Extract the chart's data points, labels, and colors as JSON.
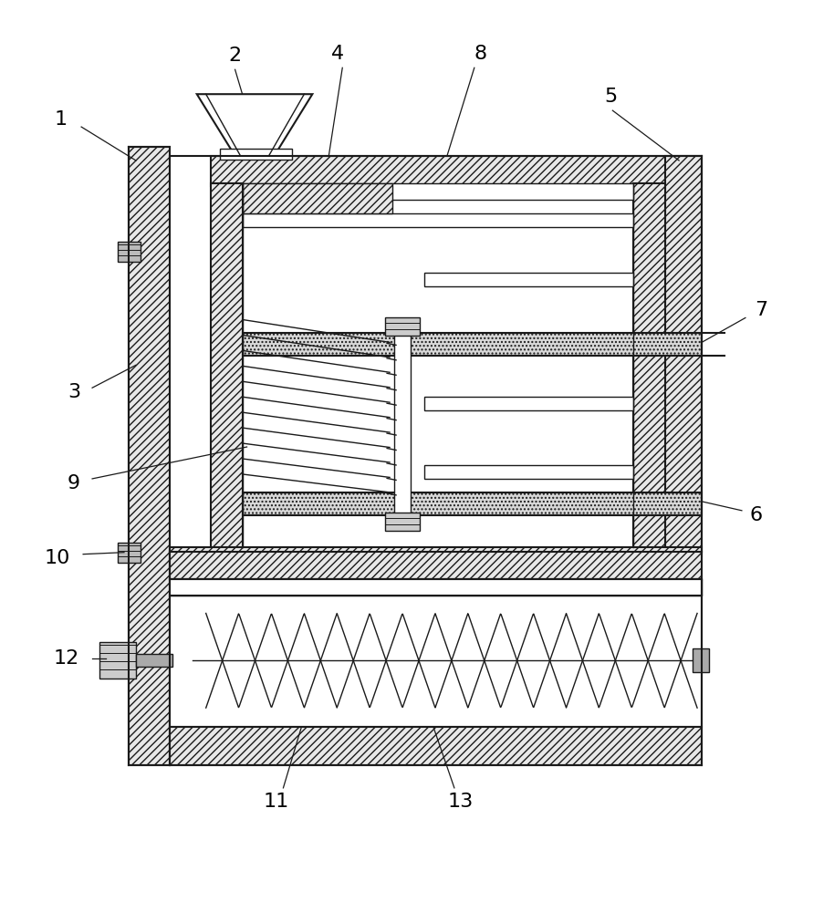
{
  "bg_color": "#ffffff",
  "lc": "#1a1a1a",
  "lw": 1.0,
  "lw2": 1.5,
  "label_fs": 16,
  "fig_width": 9.14,
  "fig_height": 10.0,
  "hatch_fc": "#e8e8e8",
  "dot_fc": "#d8d8d8"
}
